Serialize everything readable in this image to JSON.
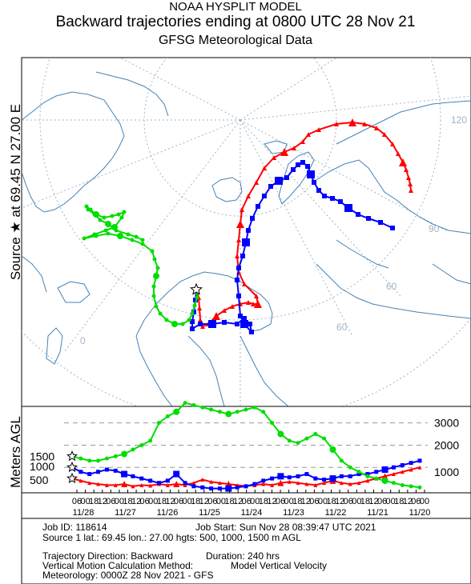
{
  "header": {
    "model": "NOAA HYSPLIT MODEL",
    "title": "Backward trajectories ending at 0800 UTC 28 Nov 21",
    "subtitle": "GFSG Meteorological Data"
  },
  "side_label": {
    "text": "Source ★ at   69.45 N   27.00 E"
  },
  "map": {
    "meridian_labels": [
      "120",
      "90",
      "60",
      "60"
    ],
    "lower_left_label": "0",
    "colors": {
      "land": "#4682b4",
      "grid": "#a0b4c8"
    }
  },
  "chart_data": {
    "type": "line",
    "title": "",
    "ylabel": "Meters AGL",
    "yticks": [
      "3000",
      "2000",
      "1000"
    ],
    "start_levels": [
      "1500",
      "1000",
      "500"
    ],
    "x_hour_labels": [
      "06",
      "00",
      "18",
      "12",
      "06",
      "00",
      "18",
      "12",
      "06",
      "00",
      "18",
      "12",
      "06",
      "00",
      "18",
      "12",
      "06",
      "00",
      "18",
      "12",
      "06",
      "00",
      "18",
      "12",
      "06",
      "00",
      "18",
      "12",
      "06",
      "00",
      "18",
      "12",
      "06",
      "00",
      "18",
      "12",
      "06",
      "00",
      "18",
      "12",
      "06",
      "00"
    ],
    "x_date_labels": [
      "11/28",
      "11/27",
      "11/26",
      "11/25",
      "11/24",
      "11/23",
      "11/22",
      "11/21",
      "11/20"
    ],
    "x_hours_back": [
      0,
      240
    ],
    "ylim": [
      0,
      3600
    ],
    "series": [
      {
        "color": "#ff0000",
        "start_height": 500,
        "heights": [
          500,
          400,
          300,
          250,
          200,
          200,
          250,
          150,
          200,
          180,
          250,
          200,
          250,
          200,
          300,
          450,
          350,
          300,
          250,
          200,
          150,
          200,
          250,
          200,
          300,
          350,
          300,
          250,
          200,
          300,
          400,
          300,
          250,
          300,
          400,
          500,
          600,
          700,
          800,
          900,
          1000
        ],
        "map_path": [
          [
            245,
            362
          ],
          [
            248,
            372
          ],
          [
            249,
            385
          ],
          [
            250,
            400
          ],
          [
            253,
            408
          ],
          [
            260,
            405
          ],
          [
            270,
            395
          ],
          [
            280,
            388
          ],
          [
            290,
            383
          ],
          [
            300,
            380
          ],
          [
            310,
            378
          ],
          [
            316,
            380
          ],
          [
            322,
            380
          ],
          [
            320,
            370
          ],
          [
            305,
            355
          ],
          [
            298,
            340
          ],
          [
            296,
            320
          ],
          [
            298,
            300
          ],
          [
            300,
            280
          ],
          [
            302,
            262
          ],
          [
            310,
            245
          ],
          [
            320,
            228
          ],
          [
            330,
            210
          ],
          [
            342,
            197
          ],
          [
            355,
            190
          ],
          [
            367,
            185
          ],
          [
            378,
            177
          ],
          [
            385,
            168
          ],
          [
            398,
            162
          ],
          [
            420,
            155
          ],
          [
            440,
            153
          ],
          [
            455,
            155
          ],
          [
            470,
            160
          ],
          [
            480,
            168
          ],
          [
            490,
            180
          ],
          [
            497,
            192
          ],
          [
            503,
            203
          ],
          [
            507,
            212
          ],
          [
            510,
            222
          ],
          [
            512,
            230
          ],
          [
            513,
            238
          ]
        ]
      },
      {
        "color": "#0000ff",
        "start_height": 1000,
        "heights": [
          1000,
          800,
          700,
          800,
          900,
          850,
          700,
          600,
          500,
          400,
          300,
          400,
          700,
          300,
          150,
          100,
          50,
          50,
          50,
          100,
          150,
          250,
          400,
          500,
          600,
          550,
          600,
          700,
          500,
          450,
          500,
          600,
          600,
          700,
          700,
          800,
          900,
          1000,
          1100,
          1200,
          1300
        ],
        "map_path": [
          [
            245,
            362
          ],
          [
            244,
            375
          ],
          [
            242,
            390
          ],
          [
            240,
            402
          ],
          [
            240,
            411
          ],
          [
            250,
            405
          ],
          [
            265,
            405
          ],
          [
            280,
            403
          ],
          [
            296,
            405
          ],
          [
            305,
            398
          ],
          [
            312,
            405
          ],
          [
            314,
            415
          ],
          [
            305,
            405
          ],
          [
            300,
            395
          ],
          [
            298,
            370
          ],
          [
            296,
            350
          ],
          [
            298,
            335
          ],
          [
            303,
            320
          ],
          [
            307,
            303
          ],
          [
            310,
            288
          ],
          [
            315,
            273
          ],
          [
            322,
            258
          ],
          [
            330,
            245
          ],
          [
            338,
            233
          ],
          [
            348,
            226
          ],
          [
            358,
            222
          ],
          [
            366,
            212
          ],
          [
            372,
            206
          ],
          [
            378,
            203
          ],
          [
            384,
            208
          ],
          [
            388,
            218
          ],
          [
            392,
            228
          ],
          [
            398,
            238
          ],
          [
            405,
            245
          ],
          [
            415,
            248
          ],
          [
            425,
            252
          ],
          [
            435,
            260
          ],
          [
            447,
            268
          ],
          [
            460,
            273
          ],
          [
            475,
            278
          ],
          [
            490,
            285
          ]
        ]
      },
      {
        "color": "#00dd00",
        "start_height": 1500,
        "heights": [
          1500,
          1400,
          1300,
          1300,
          1400,
          1500,
          1600,
          1800,
          2000,
          2200,
          3000,
          3300,
          3500,
          3900,
          3800,
          3700,
          3600,
          3500,
          3400,
          3500,
          3600,
          3700,
          3500,
          3000,
          2500,
          2200,
          2100,
          2300,
          2500,
          2300,
          1800,
          1300,
          1000,
          800,
          600,
          500,
          400,
          300,
          200,
          150,
          100
        ],
        "map_path": [
          [
            245,
            362
          ],
          [
            246,
            372
          ],
          [
            243,
            382
          ],
          [
            240,
            392
          ],
          [
            236,
            400
          ],
          [
            228,
            405
          ],
          [
            218,
            405
          ],
          [
            208,
            400
          ],
          [
            200,
            392
          ],
          [
            195,
            383
          ],
          [
            192,
            370
          ],
          [
            192,
            358
          ],
          [
            195,
            345
          ],
          [
            197,
            335
          ],
          [
            193,
            324
          ],
          [
            190,
            314
          ],
          [
            178,
            305
          ],
          [
            165,
            300
          ],
          [
            150,
            295
          ],
          [
            135,
            292
          ],
          [
            120,
            295
          ],
          [
            105,
            298
          ],
          [
            118,
            293
          ],
          [
            132,
            288
          ],
          [
            143,
            284
          ],
          [
            152,
            272
          ],
          [
            155,
            265
          ],
          [
            148,
            268
          ],
          [
            140,
            270
          ],
          [
            130,
            272
          ],
          [
            120,
            268
          ],
          [
            113,
            262
          ],
          [
            108,
            258
          ],
          [
            110,
            262
          ],
          [
            118,
            268
          ],
          [
            125,
            275
          ],
          [
            135,
            280
          ],
          [
            145,
            288
          ],
          [
            160,
            293
          ],
          [
            170,
            296
          ],
          [
            178,
            300
          ]
        ]
      }
    ]
  },
  "job": {
    "job_id": "Job ID: 118614",
    "job_start": "Job Start: Sun Nov 28 08:39:47 UTC 2021",
    "source": "Source 1 lat.: 69.45  lon.: 27.00   hgts: 500, 1000, 1500 m AGL",
    "direction": "Trajectory Direction: Backward",
    "duration": "Duration: 240 hrs",
    "vertical_motion": "Vertical Motion Calculation Method:",
    "vertical_motion_value": "Model Vertical Velocity",
    "meteorology": "Meteorology: 0000Z 28 Nov 2021 - GFS"
  }
}
